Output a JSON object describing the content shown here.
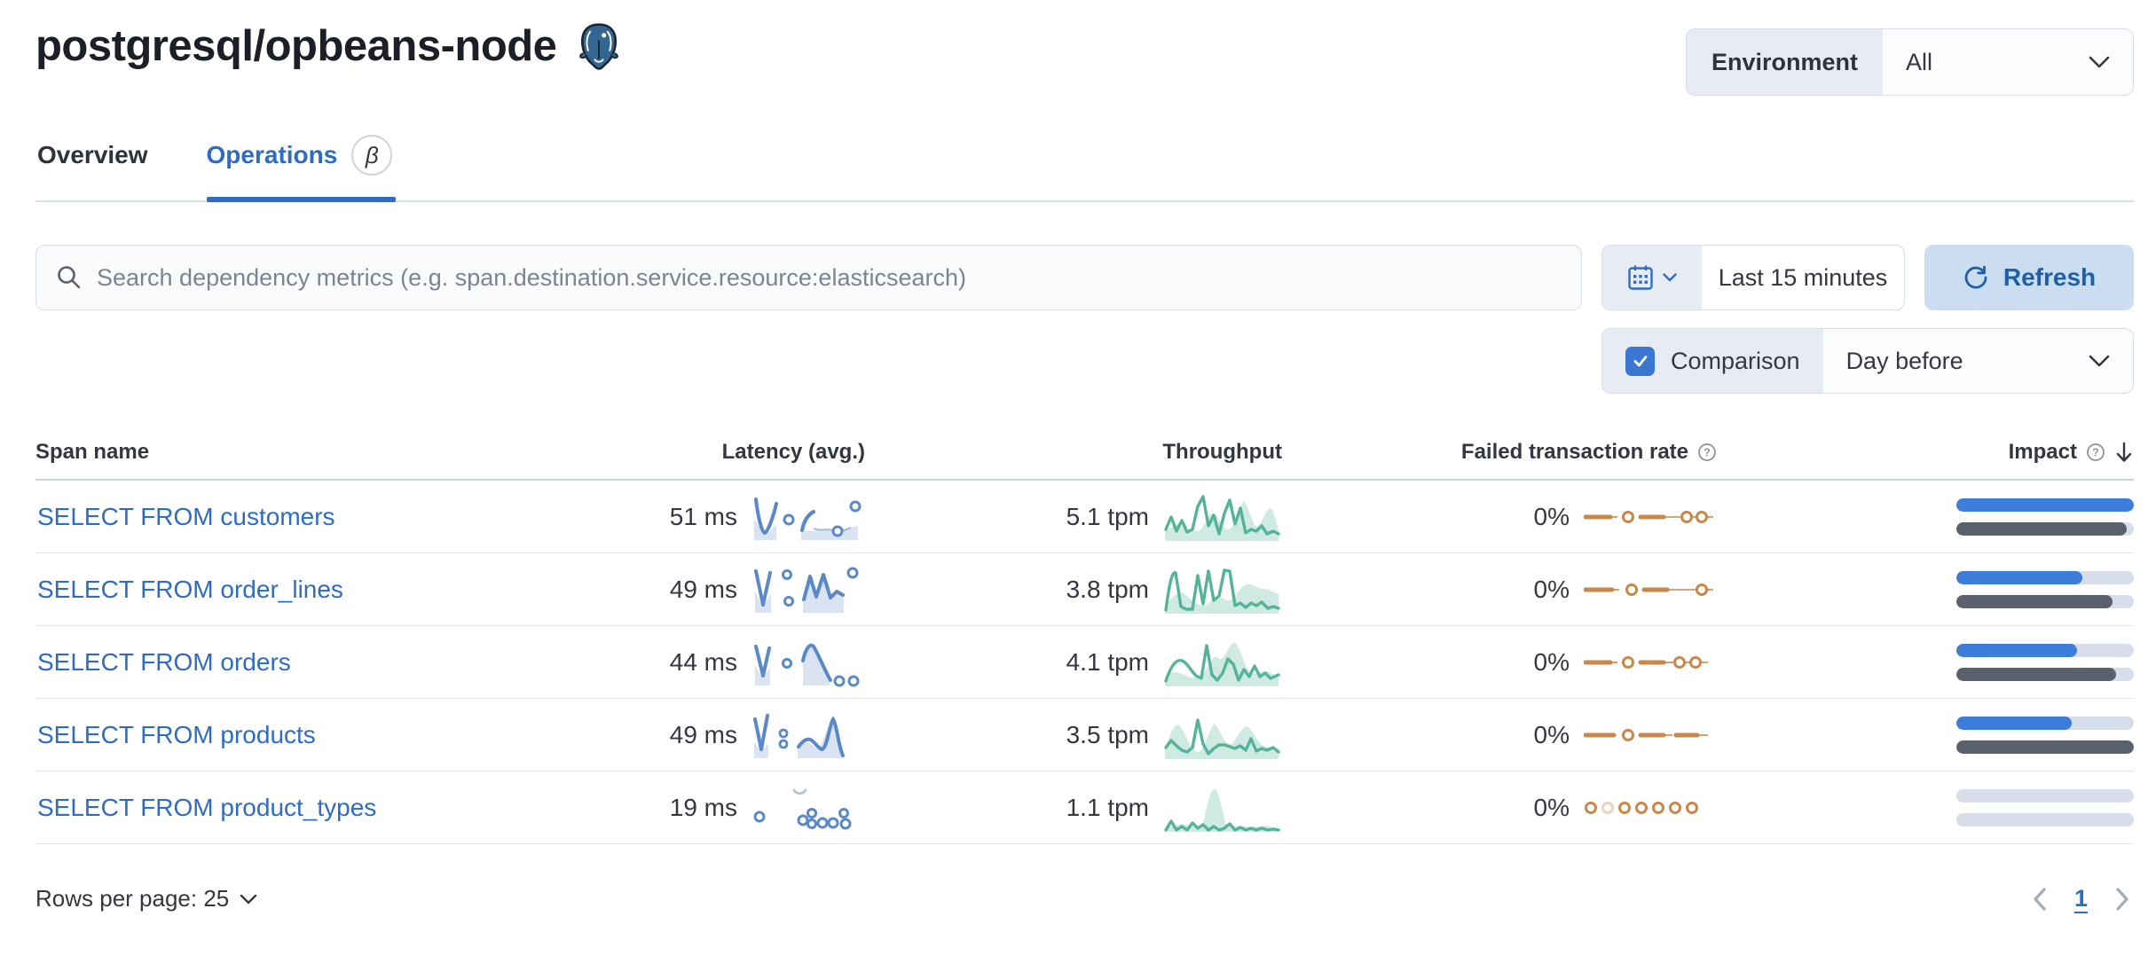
{
  "header": {
    "title": "postgresql/opbeans-node",
    "environment": {
      "label": "Environment",
      "value": "All"
    }
  },
  "tabs": {
    "overview": "Overview",
    "operations": "Operations",
    "operations_badge": "β"
  },
  "toolbar": {
    "search_placeholder": "Search dependency metrics (e.g. span.destination.service.resource:elasticsearch)",
    "time_range": "Last 15 minutes",
    "refresh_label": "Refresh",
    "comparison": {
      "label": "Comparison",
      "checked": true,
      "value": "Day before"
    }
  },
  "table": {
    "headers": {
      "span_name": "Span name",
      "latency": "Latency (avg.)",
      "throughput": "Throughput",
      "failed_rate": "Failed transaction rate",
      "impact": "Impact"
    },
    "sort": {
      "column": "Impact",
      "direction": "desc"
    },
    "rows": [
      {
        "span_name": "SELECT FROM customers",
        "latency": "51 ms",
        "throughput": "5.1 tpm",
        "failed_rate": "0%",
        "impact_current_pct": 100,
        "impact_previous_pct": 96
      },
      {
        "span_name": "SELECT FROM order_lines",
        "latency": "49 ms",
        "throughput": "3.8 tpm",
        "failed_rate": "0%",
        "impact_current_pct": 71,
        "impact_previous_pct": 88
      },
      {
        "span_name": "SELECT FROM orders",
        "latency": "44 ms",
        "throughput": "4.1 tpm",
        "failed_rate": "0%",
        "impact_current_pct": 68,
        "impact_previous_pct": 90
      },
      {
        "span_name": "SELECT FROM products",
        "latency": "49 ms",
        "throughput": "3.5 tpm",
        "failed_rate": "0%",
        "impact_current_pct": 65,
        "impact_previous_pct": 100
      },
      {
        "span_name": "SELECT FROM product_types",
        "latency": "19 ms",
        "throughput": "1.1 tpm",
        "failed_rate": "0%",
        "impact_current_pct": 0,
        "impact_previous_pct": 0
      }
    ]
  },
  "footer": {
    "rows_per_page": "Rows per page: 25",
    "current_page": "1"
  },
  "icons": [
    "postgresql-logo",
    "search-icon",
    "calendar-icon",
    "refresh-icon",
    "chevron-down-icon",
    "question-icon",
    "sort-desc-icon",
    "chevron-left-icon",
    "chevron-right-icon",
    "checkmark-icon"
  ],
  "colors": {
    "accent_blue": "#2e6cc2",
    "impact_current": "#3b7dd8",
    "impact_previous": "#5b616c",
    "latency_sparkline": "#5b88c7",
    "throughput_sparkline": "#54b399",
    "failed_rate_sparkline": "#ca8748"
  }
}
